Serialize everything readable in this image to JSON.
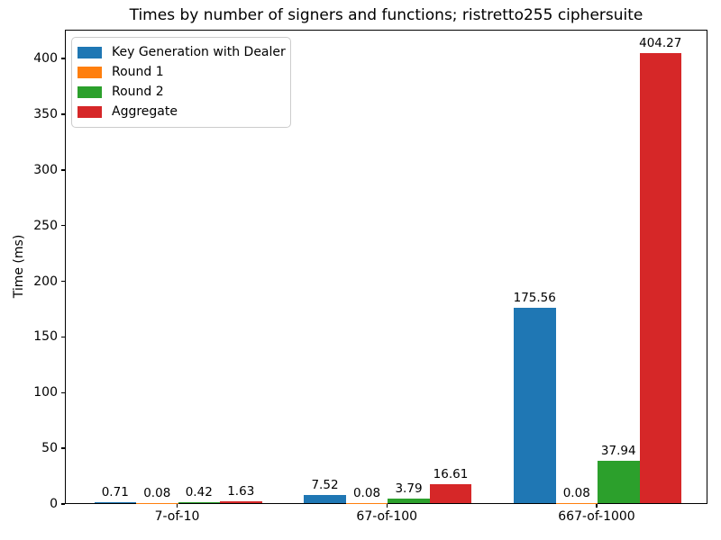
{
  "figure": {
    "background": "#ffffff",
    "text_color": "#000000",
    "axis_color": "#000000",
    "legend_border_color": "#cccccc"
  },
  "chart_data": {
    "type": "bar",
    "title": "Times by number of signers and functions; ristretto255 ciphersuite",
    "xlabel": "",
    "ylabel": "Time (ms)",
    "categories": [
      "7-of-10",
      "67-of-100",
      "667-of-1000"
    ],
    "series": [
      {
        "name": "Key Generation with Dealer",
        "color": "#1f77b4",
        "values": [
          0.71,
          7.52,
          175.56
        ]
      },
      {
        "name": "Round 1",
        "color": "#ff7f0e",
        "values": [
          0.08,
          0.08,
          0.08
        ]
      },
      {
        "name": "Round 2",
        "color": "#2ca02c",
        "values": [
          0.42,
          3.79,
          37.94
        ]
      },
      {
        "name": "Aggregate",
        "color": "#d62728",
        "values": [
          1.63,
          16.61,
          404.27
        ]
      }
    ],
    "bar_labels": [
      [
        "0.71",
        "7.52",
        "175.56"
      ],
      [
        "0.08",
        "0.08",
        "0.08"
      ],
      [
        "0.42",
        "3.79",
        "37.94"
      ],
      [
        "1.63",
        "16.61",
        "404.27"
      ]
    ],
    "yticks": [
      0,
      50,
      100,
      150,
      200,
      250,
      300,
      350,
      400
    ],
    "ylim": [
      0,
      426
    ],
    "grid": false,
    "legend_position": "upper left"
  }
}
